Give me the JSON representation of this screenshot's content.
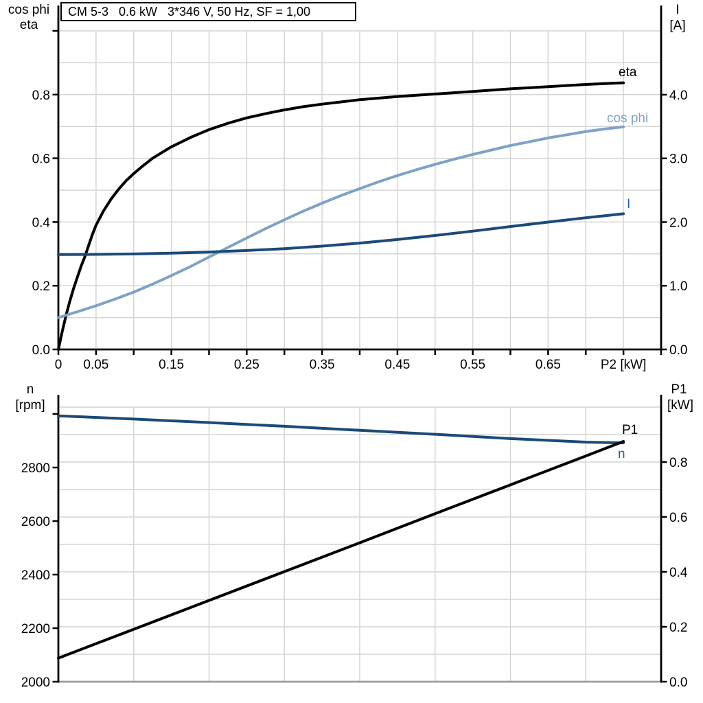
{
  "title_box": {
    "text": "CM 5-3   0.6 kW   3*346 V, 50 Hz, SF = 1,00"
  },
  "colors": {
    "black": "#000000",
    "light_blue": "#7FA2C6",
    "navy": "#1B4A78",
    "label_blue": "#2060AE",
    "grid": "#D4D4D4",
    "gray_axis": "#9C9C9C"
  },
  "chart_data": [
    {
      "id": "motor-performance-top",
      "type": "line",
      "title": "CM 5-3   0.6 kW   3*346 V, 50 Hz, SF = 1,00",
      "xlabel": "P2 [kW]",
      "left_axis_label": [
        "cos phi",
        "eta"
      ],
      "right_axis_label": [
        "I",
        "[A]"
      ],
      "xlim": [
        0,
        0.8
      ],
      "ylim_left": [
        0,
        1.0
      ],
      "ylim_right": [
        0,
        5.0
      ],
      "grid": true,
      "x_tick_labels": [
        {
          "v": 0,
          "t": "0"
        },
        {
          "v": 0.05,
          "t": "0.05"
        },
        {
          "v": 0.15,
          "t": "0.15"
        },
        {
          "v": 0.25,
          "t": "0.25"
        },
        {
          "v": 0.35,
          "t": "0.35"
        },
        {
          "v": 0.45,
          "t": "0.45"
        },
        {
          "v": 0.55,
          "t": "0.55"
        },
        {
          "v": 0.65,
          "t": "0.65"
        }
      ],
      "xlabel_pos": 0.75,
      "left_ticks": {
        "values": [
          0,
          0.2,
          0.4,
          0.6,
          0.8,
          1.0
        ],
        "labels": [
          "0.0",
          "0.2",
          "0.4",
          "0.6",
          "0.8",
          ""
        ]
      },
      "right_ticks": {
        "values": [
          0,
          1,
          2,
          3,
          4
        ],
        "labels": [
          "0.0",
          "1.0",
          "2.0",
          "3.0",
          "4.0"
        ]
      },
      "series": [
        {
          "name": "eta",
          "label": "eta",
          "axis": "left",
          "color_key": "black",
          "label_color_key": "black",
          "x": [
            0,
            0.005,
            0.01,
            0.015,
            0.02,
            0.025,
            0.03,
            0.035,
            0.04,
            0.045,
            0.05,
            0.06,
            0.07,
            0.08,
            0.09,
            0.1,
            0.11,
            0.125,
            0.14,
            0.15,
            0.175,
            0.2,
            0.225,
            0.25,
            0.275,
            0.3,
            0.325,
            0.35,
            0.375,
            0.4,
            0.45,
            0.5,
            0.55,
            0.6,
            0.65,
            0.7,
            0.75
          ],
          "values": [
            0,
            0.055,
            0.105,
            0.15,
            0.19,
            0.225,
            0.26,
            0.29,
            0.325,
            0.36,
            0.39,
            0.435,
            0.472,
            0.503,
            0.53,
            0.552,
            0.572,
            0.6,
            0.622,
            0.636,
            0.665,
            0.69,
            0.71,
            0.727,
            0.74,
            0.752,
            0.762,
            0.77,
            0.777,
            0.784,
            0.794,
            0.802,
            0.81,
            0.818,
            0.825,
            0.832,
            0.837
          ]
        },
        {
          "name": "cos-phi",
          "label": "cos phi",
          "axis": "left",
          "color_key": "light_blue",
          "label_color_key": "light_blue",
          "x": [
            0,
            0.025,
            0.05,
            0.075,
            0.1,
            0.125,
            0.15,
            0.175,
            0.2,
            0.225,
            0.25,
            0.275,
            0.3,
            0.325,
            0.35,
            0.375,
            0.4,
            0.425,
            0.45,
            0.475,
            0.5,
            0.525,
            0.55,
            0.575,
            0.6,
            0.625,
            0.65,
            0.675,
            0.7,
            0.725,
            0.75
          ],
          "values": [
            0.1,
            0.118,
            0.137,
            0.158,
            0.18,
            0.205,
            0.232,
            0.26,
            0.29,
            0.32,
            0.35,
            0.379,
            0.407,
            0.434,
            0.459,
            0.483,
            0.505,
            0.526,
            0.546,
            0.564,
            0.581,
            0.597,
            0.612,
            0.626,
            0.64,
            0.652,
            0.664,
            0.674,
            0.684,
            0.692,
            0.699
          ]
        },
        {
          "name": "current",
          "label": "I",
          "axis": "right",
          "color_key": "navy",
          "label_color_key": "label_blue",
          "x": [
            0,
            0.05,
            0.1,
            0.15,
            0.2,
            0.25,
            0.3,
            0.35,
            0.4,
            0.45,
            0.5,
            0.55,
            0.6,
            0.65,
            0.7,
            0.75
          ],
          "values": [
            1.49,
            1.493,
            1.5,
            1.512,
            1.53,
            1.553,
            1.583,
            1.622,
            1.67,
            1.726,
            1.79,
            1.858,
            1.93,
            2.0,
            2.068,
            2.13
          ]
        }
      ]
    },
    {
      "id": "motor-performance-bottom",
      "type": "line",
      "title": "",
      "xlabel": "",
      "left_axis_label": [
        "n",
        "[rpm]"
      ],
      "right_axis_label": [
        "P1",
        "[kW]"
      ],
      "xlim": [
        0,
        0.8
      ],
      "ylim_left": [
        2000,
        3000
      ],
      "ylim_right": [
        0,
        1.0
      ],
      "grid": true,
      "x_tick_labels": [],
      "xlabel_pos": null,
      "left_ticks": {
        "values": [
          2000,
          2200,
          2400,
          2600,
          2800,
          3000
        ],
        "labels": [
          "2000",
          "2200",
          "2400",
          "2600",
          "2800",
          ""
        ]
      },
      "right_ticks": {
        "values": [
          0,
          0.2,
          0.4,
          0.6,
          0.8
        ],
        "labels": [
          "0.0",
          "0.2",
          "0.4",
          "0.6",
          "0.8"
        ]
      },
      "series": [
        {
          "name": "speed",
          "label": "n",
          "axis": "left",
          "color_key": "navy",
          "label_color_key": "label_blue",
          "x": [
            0,
            0.1,
            0.2,
            0.3,
            0.4,
            0.5,
            0.6,
            0.7,
            0.75
          ],
          "values": [
            2993,
            2981,
            2968,
            2954,
            2939,
            2924,
            2908,
            2895,
            2892
          ]
        },
        {
          "name": "P1",
          "label": "P1",
          "axis": "right",
          "color_key": "black",
          "label_color_key": "black",
          "x": [
            0,
            0.1,
            0.2,
            0.3,
            0.4,
            0.5,
            0.6,
            0.7,
            0.75
          ],
          "values": [
            0.086,
            0.191,
            0.296,
            0.401,
            0.506,
            0.612,
            0.717,
            0.822,
            0.875
          ]
        }
      ]
    }
  ]
}
